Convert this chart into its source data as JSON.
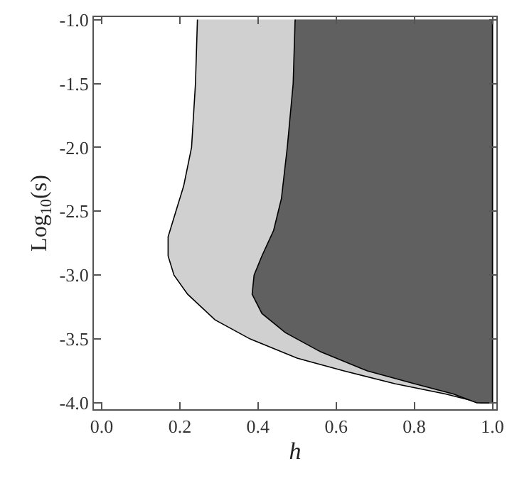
{
  "chart_data": {
    "type": "area",
    "xlabel": "h",
    "ylabel": "Log$_{10}$(s)",
    "xlim": [
      -0.02,
      1.01
    ],
    "ylim": [
      -4.05,
      -0.98
    ],
    "xticks": [
      {
        "value": 0,
        "label": "0.0"
      },
      0.2,
      0.4,
      0.6,
      0.8,
      {
        "value": 1,
        "label": "1.0"
      }
    ],
    "yticks": [
      {
        "value": -1,
        "label": "-1.0"
      },
      -1.5,
      {
        "value": -2,
        "label": "-2.0"
      },
      -2.5,
      {
        "value": -3,
        "label": "-3.0"
      },
      -3.5,
      {
        "value": -4,
        "label": "-4.0"
      }
    ],
    "series": [
      {
        "color": "#d0d0d0",
        "x": [
          0.245,
          0.24,
          0.23,
          0.21,
          0.19,
          0.17,
          0.17,
          0.185,
          0.22,
          0.29,
          0.38,
          0.5,
          0.62,
          0.75,
          0.88,
          0.97,
          1.0,
          1.0
        ],
        "values": [
          -1.0,
          -1.5,
          -2.0,
          -2.3,
          -2.5,
          -2.7,
          -2.85,
          -3.0,
          -3.15,
          -3.35,
          -3.5,
          -3.65,
          -3.75,
          -3.85,
          -3.93,
          -4.0,
          -4.0,
          -1.0
        ]
      },
      {
        "color": "#606060",
        "x": [
          0.495,
          0.49,
          0.475,
          0.46,
          0.44,
          0.41,
          0.39,
          0.385,
          0.41,
          0.47,
          0.56,
          0.68,
          0.8,
          0.9,
          0.96,
          1.0,
          1.0
        ],
        "values": [
          -1.0,
          -1.5,
          -2.0,
          -2.4,
          -2.65,
          -2.85,
          -3.0,
          -3.15,
          -3.3,
          -3.45,
          -3.6,
          -3.75,
          -3.85,
          -3.93,
          -4.0,
          -4.0,
          -1.0
        ]
      }
    ]
  }
}
